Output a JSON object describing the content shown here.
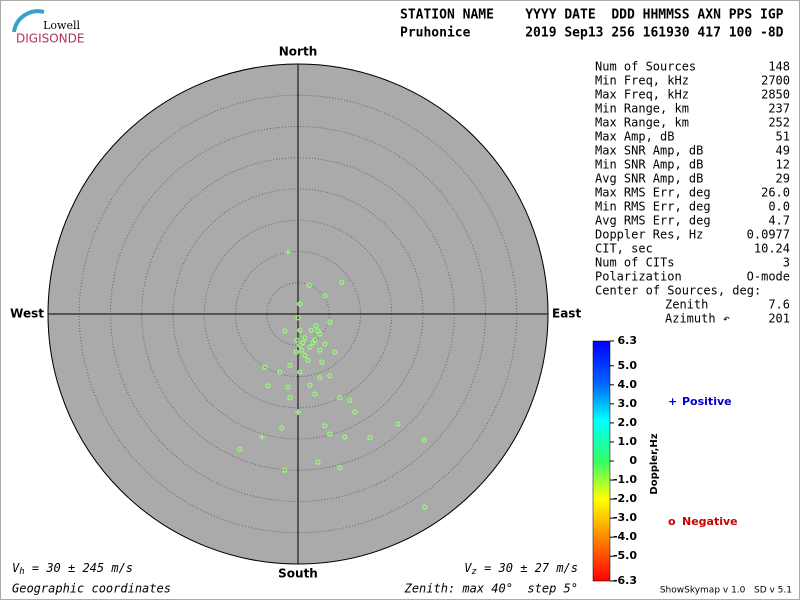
{
  "logo": {
    "top": "Lowell",
    "bottom": "DIGISONDE"
  },
  "header": {
    "line1": "STATION NAME    YYYY DATE  DDD HHMMSS AXN PPS IGP",
    "line2": "Pruhonice       2019 Sep13 256 161930 417 100 -8D"
  },
  "stats": [
    {
      "label": "Num of Sources",
      "value": "148"
    },
    {
      "label": "Min Freq, kHz",
      "value": "2700"
    },
    {
      "label": "Max Freq, kHz",
      "value": "2850"
    },
    {
      "label": "Min Range, km",
      "value": "237"
    },
    {
      "label": "Max Range, km",
      "value": "252"
    },
    {
      "label": "Max Amp, dB",
      "value": "51"
    },
    {
      "label": "Max SNR Amp, dB",
      "value": "49"
    },
    {
      "label": "Min SNR Amp, dB",
      "value": "12"
    },
    {
      "label": "Avg SNR Amp, dB",
      "value": "29"
    },
    {
      "label": "Max RMS Err, deg",
      "value": "26.0"
    },
    {
      "label": "Min RMS Err, deg",
      "value": "0.0"
    },
    {
      "label": "Avg RMS Err, deg",
      "value": "4.7"
    },
    {
      "label": "Doppler Res, Hz",
      "value": "0.0977"
    },
    {
      "label": "CIT, sec",
      "value": "10.24"
    },
    {
      "label": "Num of CITs",
      "value": "3"
    },
    {
      "label": "Polarization",
      "value": "O-mode"
    },
    {
      "label": "Center of Sources, deg:"
    },
    {
      "label": "Zenith",
      "value": "7.6",
      "indent": true
    },
    {
      "label": "Azimuth ↶",
      "value": "201",
      "indent": true
    }
  ],
  "footer": {
    "vh": {
      "main": "V",
      "sub": "h",
      "rest": " = 30 ± 245 m/s"
    },
    "vz": {
      "main": "V",
      "sub": "z",
      "rest": " = 30 ± 27 m/s"
    },
    "coords": "Geographic coordinates",
    "zenith": "Zenith: max 40°  step 5°",
    "version": "ShowSkymap v 1.0   SD v 5.1"
  },
  "chart_data": {
    "type": "polar-scatter",
    "directions": {
      "north": "North",
      "east": "East",
      "south": "South",
      "west": "West"
    },
    "rlim": [
      0,
      40
    ],
    "rticks": [
      5,
      10,
      15,
      20,
      25,
      30,
      35,
      40
    ],
    "point_color": "#90ff70",
    "series": [
      {
        "name": "Positive",
        "symbol": "+",
        "color": "#0000cc",
        "x": [
          -1.6,
          -5.8,
          0
        ],
        "y": [
          9.9,
          -19.7,
          -15.7
        ]
      },
      {
        "name": "Negative",
        "symbol": "o",
        "color": "#cc0000",
        "x": [
          1.8,
          7.0,
          4.3,
          0.3,
          0,
          -2.1,
          0.3,
          5.1,
          2.9,
          2.1,
          3.5,
          1.1,
          2.7,
          4.3,
          0.3,
          1.9,
          -0.3,
          1.1,
          3.5,
          5.9,
          3.8,
          1.6,
          -1.3,
          -5.3,
          -2.9,
          0.3,
          3.5,
          5.1,
          1.9,
          -1.6,
          -4.8,
          -1.3,
          2.7,
          6.7,
          8.3,
          9.1,
          16.0,
          4.3,
          -2.6,
          5.1,
          7.5,
          11.5,
          20.2,
          -9.3,
          3.2,
          -2.1,
          6.7,
          20.3,
          -0.2,
          0.8,
          2.4,
          3.2,
          0.6
        ],
        "y": [
          4.6,
          5.1,
          2.9,
          1.6,
          -0.6,
          -2.7,
          -2.6,
          -1.3,
          -1.9,
          -2.6,
          -3.2,
          -3.8,
          -4.2,
          -4.8,
          -5.0,
          -5.3,
          -6.1,
          -6.6,
          -5.8,
          -6.1,
          -7.7,
          -7.4,
          -8.2,
          -8.5,
          -9.3,
          -9.3,
          -10.2,
          -9.9,
          -11.4,
          -11.7,
          -11.5,
          -13.4,
          -12.8,
          -13.4,
          -13.8,
          -15.7,
          -17.6,
          -17.9,
          -18.2,
          -19.2,
          -19.7,
          -19.8,
          -20.2,
          -21.6,
          -23.7,
          -25.0,
          -24.6,
          -30.9,
          -4.2,
          -4.6,
          -4.6,
          -2.7,
          -5.8
        ]
      }
    ],
    "colorbar": {
      "label": "Doppler,Hz",
      "lim": [
        -6.3,
        6.3
      ],
      "ticks": [
        6.3,
        {
          "value": 5,
          "label": "5.0"
        },
        {
          "value": 4,
          "label": "4.0"
        },
        {
          "value": 3,
          "label": "3.0"
        },
        {
          "value": 2,
          "label": "2.0"
        },
        {
          "value": 1,
          "label": "1.0"
        },
        0,
        {
          "value": -1,
          "label": "-1.0"
        },
        {
          "value": -2,
          "label": "-2.0"
        },
        {
          "value": -3,
          "label": "-3.0"
        },
        {
          "value": -4,
          "label": "-4.0"
        },
        {
          "value": -5,
          "label": "-5.0"
        },
        -6.3
      ]
    }
  }
}
